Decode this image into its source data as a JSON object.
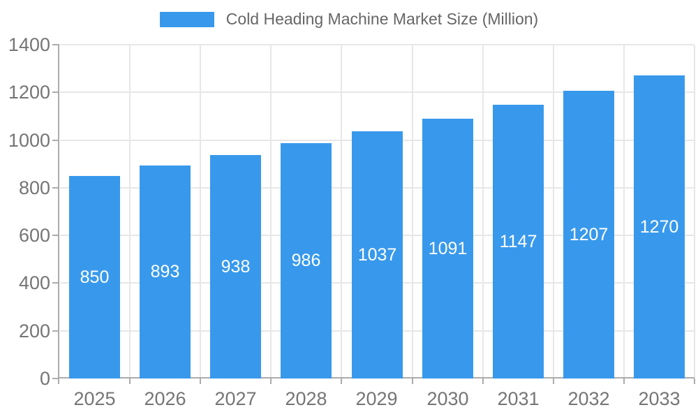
{
  "legend": {
    "label": "Cold Heading Machine Market Size (Million)"
  },
  "chart_data": {
    "type": "bar",
    "title": "Cold Heading Machine Market Size (Million)",
    "categories": [
      "2025",
      "2026",
      "2027",
      "2028",
      "2029",
      "2030",
      "2031",
      "2032",
      "2033"
    ],
    "values": [
      850,
      893,
      938,
      986,
      1037,
      1091,
      1147,
      1207,
      1270
    ],
    "xlabel": "",
    "ylabel": "",
    "ylim": [
      0,
      1400
    ],
    "yticks": [
      0,
      200,
      400,
      600,
      800,
      1000,
      1200,
      1400
    ],
    "grid": true,
    "legend_position": "top",
    "bar_color": "#3899EC",
    "value_label_color": "#FFFFFF",
    "axis_color": "#ACACAC",
    "grid_color": "#E7E7E7",
    "tick_label_color": "#757575",
    "legend_text_color": "#666666"
  }
}
